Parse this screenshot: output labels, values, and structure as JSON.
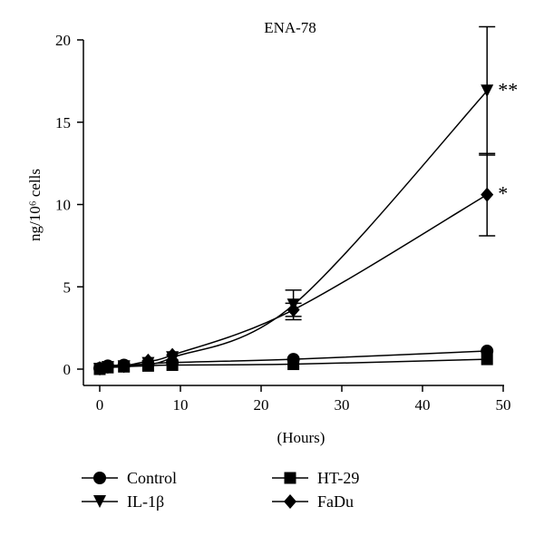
{
  "chart_data": {
    "type": "line",
    "title": "ENA-78",
    "xlabel": "(Hours)",
    "ylabel": "ng/10⁶ cells",
    "xlim": [
      0,
      50
    ],
    "ylim": [
      0,
      20
    ],
    "xticks": [
      0,
      10,
      20,
      30,
      40,
      50
    ],
    "yticks": [
      0,
      5,
      10,
      15,
      20
    ],
    "grid": false,
    "legend_position": "bottom",
    "series": [
      {
        "name": "Control",
        "marker": "circle",
        "x": [
          0,
          1,
          3,
          6,
          9,
          24,
          48
        ],
        "y": [
          0.05,
          0.2,
          0.25,
          0.3,
          0.4,
          0.6,
          1.1
        ]
      },
      {
        "name": "IL-1β",
        "marker": "triangle-down",
        "x": [
          0,
          1,
          3,
          6,
          9,
          24,
          48
        ],
        "y": [
          0.0,
          0.1,
          0.15,
          0.35,
          0.7,
          3.9,
          16.9
        ],
        "error": [
          0,
          0,
          0,
          0,
          0,
          0.9,
          3.9
        ]
      },
      {
        "name": "HT-29",
        "marker": "square",
        "x": [
          0,
          1,
          3,
          6,
          9,
          24,
          48
        ],
        "y": [
          0.0,
          0.1,
          0.15,
          0.2,
          0.25,
          0.3,
          0.6
        ]
      },
      {
        "name": "FaDu",
        "marker": "diamond",
        "x": [
          0,
          1,
          3,
          6,
          9,
          24,
          48
        ],
        "y": [
          0.05,
          0.15,
          0.2,
          0.5,
          0.85,
          3.6,
          10.6
        ],
        "error": [
          0,
          0,
          0,
          0,
          0,
          0.4,
          2.5
        ]
      }
    ],
    "annotations": [
      {
        "text": "**",
        "x": 48,
        "y": 16.9
      },
      {
        "text": "*",
        "x": 48,
        "y": 10.6
      }
    ]
  }
}
